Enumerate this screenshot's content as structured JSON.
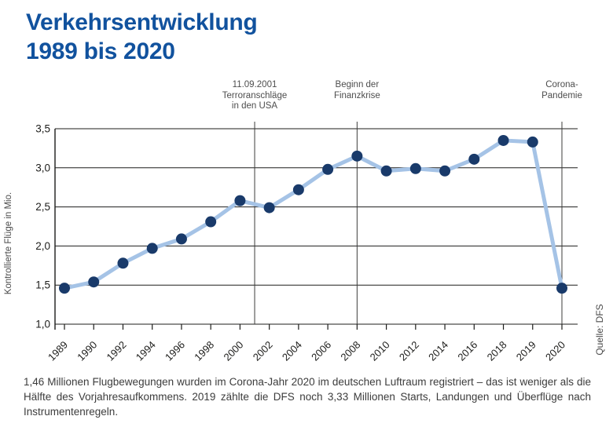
{
  "title": {
    "line1": "Verkehrsentwicklung",
    "line2": "1989 bis 2020"
  },
  "source": "Quelle: DFS",
  "caption": "1,46 Millionen Flugbewegungen wurden im Corona-Jahr 2020 im deutschen Luftraum registriert – das ist weniger als die Hälfte des Vorjahresaufkommens. 2019 zählte die DFS noch 3,33 Millionen Starts, Landungen und Überflüge nach Instrumentenregeln.",
  "colors": {
    "title_blue": "#11529e",
    "series_line": "#a5c3e6",
    "marker": "#193a6a",
    "grid": "#1d1d1b",
    "event_line": "#3c3c3b",
    "annotation_gray": "#4d4d4d",
    "tick_text": "#1d1d1b"
  },
  "chart_data": {
    "type": "line",
    "title": "Verkehrsentwicklung 1989 bis 2020",
    "xlabel": "",
    "ylabel": "Kontrollierte Flüge in Mio.",
    "ylim": [
      1.0,
      3.5
    ],
    "grid": true,
    "legend": "none",
    "categories": [
      "1989",
      "1990",
      "1992",
      "1994",
      "1996",
      "1998",
      "2000",
      "2002",
      "2004",
      "2006",
      "2008",
      "2010",
      "2012",
      "2014",
      "2016",
      "2018",
      "2019",
      "2020"
    ],
    "values": [
      1.46,
      1.54,
      1.78,
      1.97,
      2.09,
      2.31,
      2.58,
      2.49,
      2.72,
      2.98,
      3.15,
      2.96,
      2.99,
      2.96,
      3.11,
      3.35,
      3.33,
      1.46
    ],
    "y_ticks": [
      {
        "value": 1.0,
        "label": "1,0"
      },
      {
        "value": 1.5,
        "label": "1,5"
      },
      {
        "value": 2.0,
        "label": "2,0"
      },
      {
        "value": 2.5,
        "label": "2,5"
      },
      {
        "value": 3.0,
        "label": "3,0"
      },
      {
        "value": 3.5,
        "label": "3,5"
      }
    ],
    "annotations": [
      {
        "year": 2001,
        "lines": [
          "11.09.2001",
          "Terroranschläge",
          "in den USA"
        ]
      },
      {
        "year": 2008,
        "lines": [
          "Beginn der",
          "Finanzkrise"
        ]
      },
      {
        "year": 2020,
        "lines": [
          "Corona-",
          "Pandemie"
        ]
      }
    ]
  }
}
